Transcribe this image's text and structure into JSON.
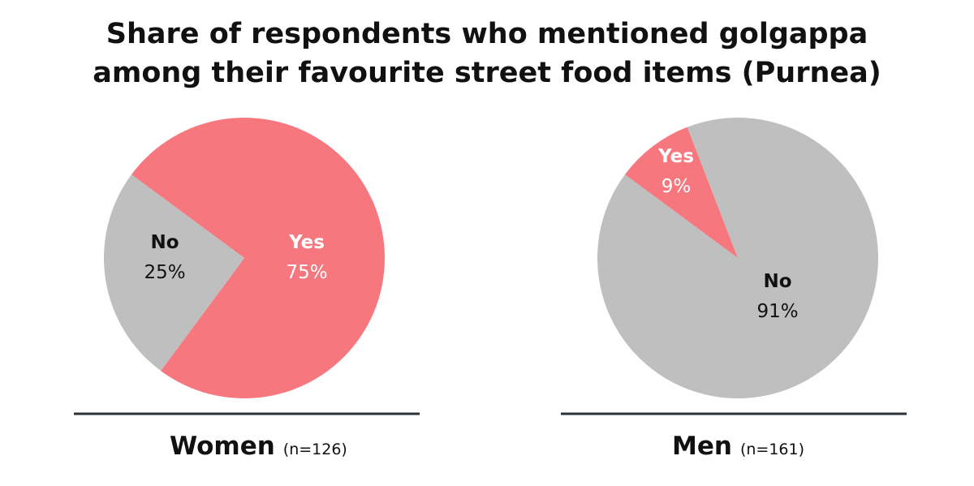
{
  "chart_data": {
    "type": "pie",
    "title": "Share of respondents who mentioned golgappa among their favourite street food items (Purnea)",
    "title_lines": [
      "Share of respondents who mentioned golgappa",
      "among their favourite street food items (Purnea)"
    ],
    "colors": {
      "Yes": "#F7777F",
      "No": "#BFBFBF"
    },
    "charts": [
      {
        "group": "Women",
        "n_label": "(n=126)",
        "slices": [
          {
            "label": "Yes",
            "value": 75,
            "value_label": "75%",
            "text_color": "#ffffff"
          },
          {
            "label": "No",
            "value": 25,
            "value_label": "25%",
            "text_color": "#111111"
          }
        ]
      },
      {
        "group": "Men",
        "n_label": "(n=161)",
        "slices": [
          {
            "label": "Yes",
            "value": 9,
            "value_label": "9%",
            "text_color": "#ffffff"
          },
          {
            "label": "No",
            "value": 91,
            "value_label": "91%",
            "text_color": "#111111"
          }
        ]
      }
    ]
  }
}
